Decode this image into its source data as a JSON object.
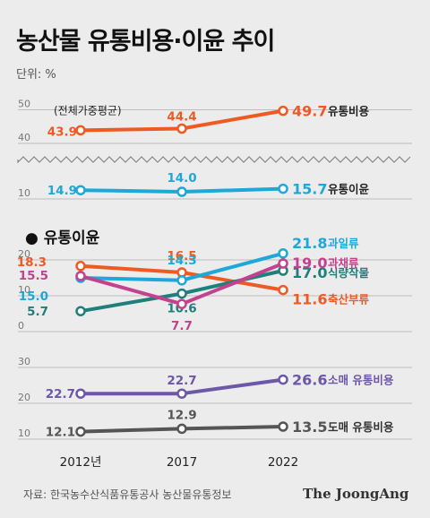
{
  "title": "농산물 유통비용·이윤 추이",
  "unit": "단위: %",
  "source": "자료: 한국농수산식품유통공사 농산물유통정보",
  "logo": "The JoongAng",
  "colors": {
    "red": "#ee5a24",
    "cyan": "#1ea8d8",
    "magenta": "#c2428f",
    "teal": "#1f7f7a",
    "purple": "#6c57a8",
    "gray": "#555555"
  },
  "chart_data": [
    {
      "type": "line",
      "note": "(전체가중평균)",
      "x": [
        "2012년",
        "2017",
        "2022"
      ],
      "ylim": [
        10,
        50
      ],
      "yticks": [
        10,
        40,
        50
      ],
      "axis_break": true,
      "series": [
        {
          "name": "유통비용",
          "values": [
            43.9,
            44.4,
            49.7
          ],
          "labels": [
            "43.9",
            "44.4",
            "49.7"
          ],
          "color": "red"
        },
        {
          "name": "유통이윤",
          "values": [
            14.9,
            14.0,
            15.7
          ],
          "labels": [
            "14.9",
            "14.0",
            "15.7"
          ],
          "color": "cyan"
        }
      ]
    },
    {
      "type": "line",
      "subtitle": "● 유통이윤",
      "x": [
        "2012년",
        "2017",
        "2022"
      ],
      "ylim": [
        0,
        20
      ],
      "yticks": [
        0,
        10,
        20
      ],
      "series": [
        {
          "name": "과일류",
          "values": [
            15.0,
            14.3,
            21.8
          ],
          "labels": [
            "15.0",
            "14.3",
            "21.8"
          ],
          "color": "cyan"
        },
        {
          "name": "과채류",
          "values": [
            15.5,
            7.7,
            19.0
          ],
          "labels": [
            "15.5",
            "7.7",
            "19.0"
          ],
          "color": "magenta"
        },
        {
          "name": "식량작물",
          "values": [
            5.7,
            10.6,
            17.0
          ],
          "labels": [
            "5.7",
            "10.6",
            "17.0"
          ],
          "color": "teal"
        },
        {
          "name": "축산부류",
          "values": [
            18.3,
            16.5,
            11.6
          ],
          "labels": [
            "18.3",
            "16.5",
            "11.6"
          ],
          "color": "red"
        }
      ]
    },
    {
      "type": "line",
      "x": [
        "2012년",
        "2017",
        "2022"
      ],
      "ylim": [
        10,
        30
      ],
      "yticks": [
        10,
        20,
        30
      ],
      "series": [
        {
          "name": "소매 유통비용",
          "values": [
            22.7,
            22.7,
            26.6
          ],
          "labels": [
            "22.7",
            "22.7",
            "26.6"
          ],
          "color": "purple"
        },
        {
          "name": "도매 유통비용",
          "values": [
            12.1,
            12.9,
            13.5
          ],
          "labels": [
            "12.1",
            "12.9",
            "13.5"
          ],
          "color": "gray"
        }
      ]
    }
  ]
}
